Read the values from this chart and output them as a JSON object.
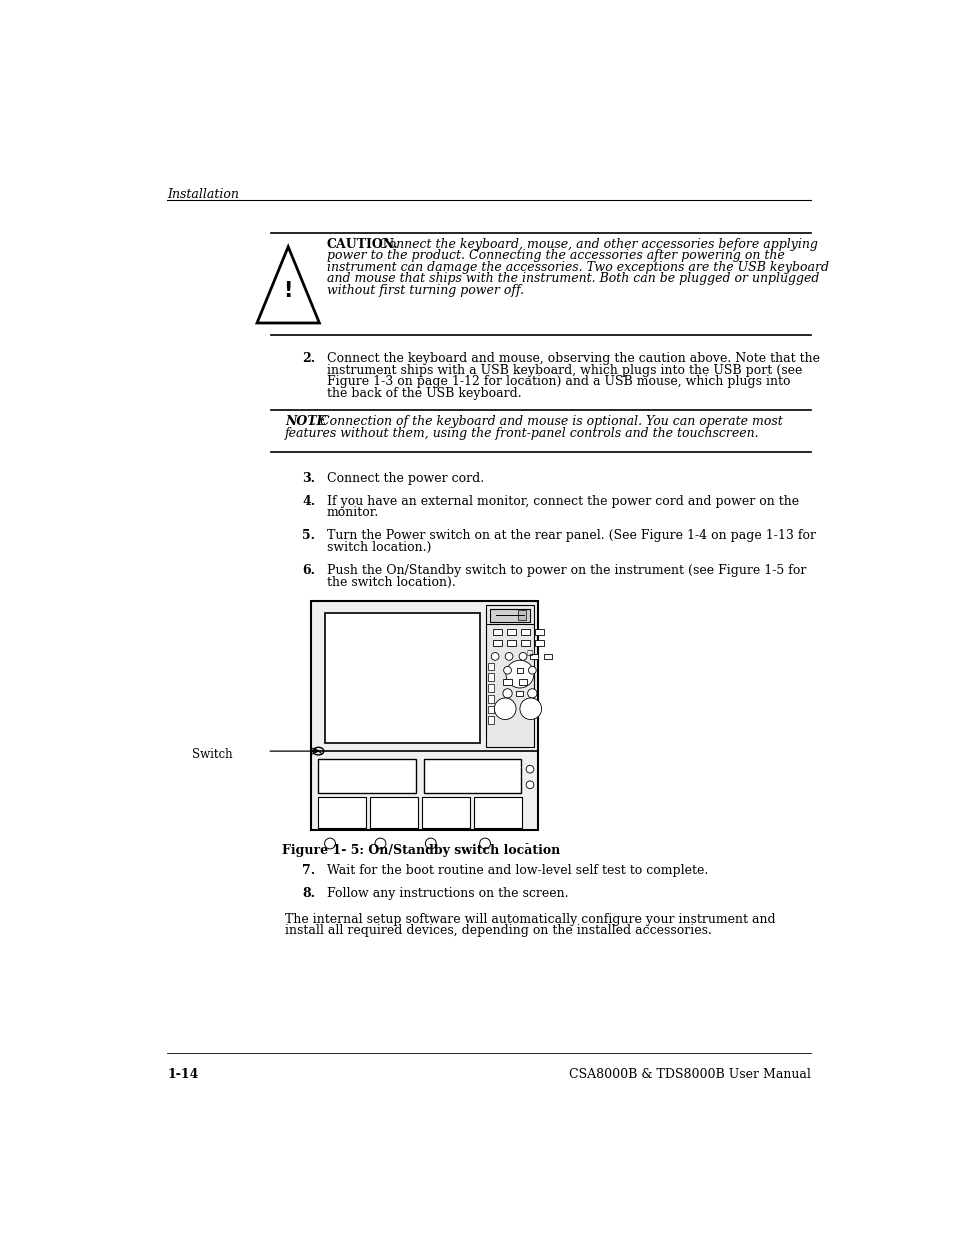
{
  "bg_color": "#ffffff",
  "header_text": "Installation",
  "footer_page": "1-14",
  "footer_manual": "CSA8000B & TDS8000B User Manual",
  "figure_caption": "Figure 1- 5: On/Standby switch location",
  "switch_label": "Switch"
}
